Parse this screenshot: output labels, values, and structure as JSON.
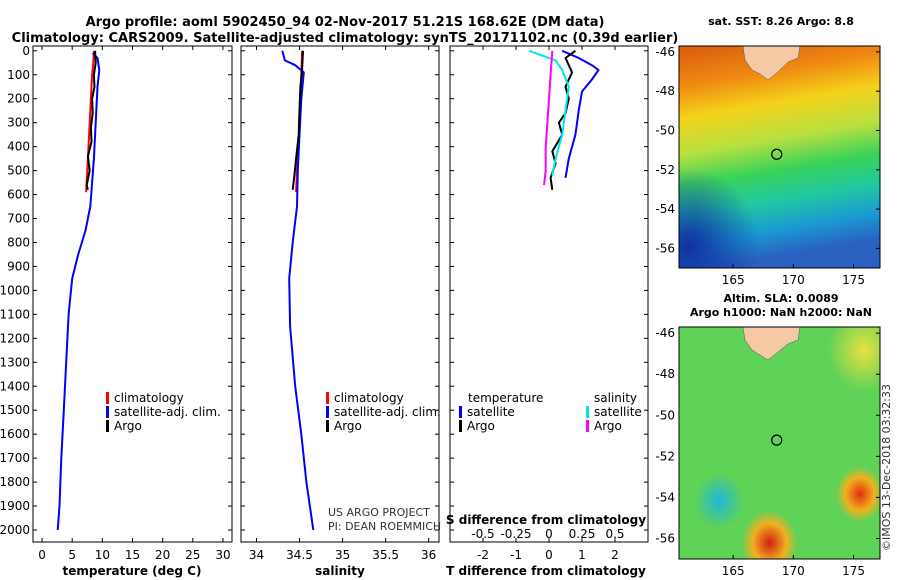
{
  "title": {
    "line1": "Argo profile: aoml 5902450_94 02-Nov-2017 51.21S 168.62E (DM data)",
    "line2": "Climatology: CARS2009. Satellite-adjusted climatology: synTS_20171102.nc (0.39d earlier)"
  },
  "depth_axis": {
    "ticks": [
      0,
      100,
      200,
      300,
      400,
      500,
      600,
      700,
      800,
      900,
      1000,
      1100,
      1200,
      1300,
      1400,
      1500,
      1600,
      1700,
      1800,
      1900,
      2000
    ],
    "ylim": [
      2050,
      -20
    ]
  },
  "colors": {
    "climatology": "#ff0000",
    "satellite": "#0000ff",
    "argo": "#000000",
    "cyan": "#00e5e5",
    "magenta": "#ff00ff"
  },
  "chart_data": [
    {
      "id": "temperature",
      "type": "line",
      "xlabel": "temperature (deg C)",
      "ylabel": "depth",
      "xlim": [
        -1.5,
        31.5
      ],
      "xticks": [
        0,
        5,
        10,
        15,
        20,
        25,
        30
      ],
      "series": [
        {
          "name": "climatology",
          "color": "#ff0000",
          "points": [
            [
              8.6,
              0
            ],
            [
              8.5,
              50
            ],
            [
              8.3,
              100
            ],
            [
              8.1,
              200
            ],
            [
              7.9,
              300
            ],
            [
              7.7,
              400
            ],
            [
              7.5,
              500
            ],
            [
              7.3,
              590
            ]
          ]
        },
        {
          "name": "satellite-adj. clim.",
          "color": "#0000ff",
          "points": [
            [
              8.4,
              10
            ],
            [
              9.2,
              30
            ],
            [
              9.5,
              80
            ],
            [
              9.2,
              150
            ],
            [
              9.0,
              250
            ],
            [
              8.8,
              350
            ],
            [
              8.6,
              450
            ],
            [
              8.3,
              550
            ],
            [
              8.0,
              650
            ],
            [
              7.2,
              750
            ],
            [
              6.0,
              850
            ],
            [
              5.0,
              950
            ],
            [
              4.4,
              1100
            ],
            [
              4.0,
              1300
            ],
            [
              3.6,
              1500
            ],
            [
              3.2,
              1700
            ],
            [
              2.9,
              1900
            ],
            [
              2.6,
              2000
            ]
          ]
        },
        {
          "name": "Argo",
          "color": "#000000",
          "points": [
            [
              8.8,
              0
            ],
            [
              8.9,
              50
            ],
            [
              8.6,
              100
            ],
            [
              8.7,
              150
            ],
            [
              8.3,
              200
            ],
            [
              8.4,
              260
            ],
            [
              8.1,
              320
            ],
            [
              8.2,
              380
            ],
            [
              7.6,
              440
            ],
            [
              7.9,
              500
            ],
            [
              7.4,
              560
            ],
            [
              7.6,
              580
            ]
          ]
        }
      ],
      "legend": [
        {
          "label": "climatology",
          "color": "#ff0000"
        },
        {
          "label": "satellite-adj. clim.",
          "color": "#0000ff"
        },
        {
          "label": "Argo",
          "color": "#000000"
        }
      ]
    },
    {
      "id": "salinity",
      "type": "line",
      "xlabel": "salinity",
      "ylabel": "depth",
      "xlim": [
        33.82,
        36.12
      ],
      "xticks": [
        34,
        34.5,
        35,
        35.5,
        36
      ],
      "tick_labels": [
        "34",
        "34.5",
        "35",
        "35.5",
        "36"
      ],
      "series": [
        {
          "name": "climatology",
          "color": "#ff0000",
          "points": [
            [
              34.53,
              0
            ],
            [
              34.52,
              100
            ],
            [
              34.5,
              250
            ],
            [
              34.49,
              400
            ],
            [
              34.47,
              500
            ],
            [
              34.46,
              590
            ]
          ]
        },
        {
          "name": "satellite-adj. clim.",
          "color": "#0000ff",
          "points": [
            [
              34.3,
              0
            ],
            [
              34.33,
              40
            ],
            [
              34.45,
              60
            ],
            [
              34.55,
              90
            ],
            [
              34.52,
              200
            ],
            [
              34.5,
              350
            ],
            [
              34.48,
              500
            ],
            [
              34.47,
              650
            ],
            [
              34.42,
              800
            ],
            [
              34.38,
              950
            ],
            [
              34.39,
              1150
            ],
            [
              34.45,
              1400
            ],
            [
              34.52,
              1600
            ],
            [
              34.58,
              1800
            ],
            [
              34.66,
              2000
            ]
          ]
        },
        {
          "name": "Argo",
          "color": "#000000",
          "points": [
            [
              34.54,
              0
            ],
            [
              34.53,
              80
            ],
            [
              34.51,
              150
            ],
            [
              34.5,
              250
            ],
            [
              34.49,
              350
            ],
            [
              34.46,
              450
            ],
            [
              34.44,
              520
            ],
            [
              34.42,
              580
            ]
          ]
        }
      ],
      "legend": [
        {
          "label": "climatology",
          "color": "#ff0000"
        },
        {
          "label": "satellite-adj. clim.",
          "color": "#0000ff"
        },
        {
          "label": "Argo",
          "color": "#000000"
        }
      ],
      "credit": [
        "US ARGO PROJECT",
        "PI: DEAN ROEMMICH"
      ]
    },
    {
      "id": "difference",
      "type": "line",
      "xlabel": "T difference from climatology",
      "xlabel_top": "S difference from climatology",
      "ylabel": "depth",
      "xlim": [
        -3,
        3
      ],
      "xticks": [
        -2,
        -1,
        0,
        1,
        2
      ],
      "top_ticks": [
        -0.5,
        -0.25,
        0,
        0.25,
        0.5
      ],
      "top_tick_labels": [
        "-0.5",
        "-0.25",
        "0",
        "0.25",
        "0.5"
      ],
      "series": [
        {
          "name": "temperature satellite",
          "color": "#0000ff",
          "points": [
            [
              0.4,
              0
            ],
            [
              0.9,
              30
            ],
            [
              1.3,
              60
            ],
            [
              1.5,
              80
            ],
            [
              1.3,
              120
            ],
            [
              1.0,
              170
            ],
            [
              0.9,
              250
            ],
            [
              0.8,
              350
            ],
            [
              0.6,
              450
            ],
            [
              0.5,
              530
            ]
          ]
        },
        {
          "name": "temperature Argo",
          "color": "#000000",
          "points": [
            [
              0.8,
              0
            ],
            [
              0.5,
              30
            ],
            [
              0.6,
              60
            ],
            [
              0.7,
              90
            ],
            [
              0.5,
              150
            ],
            [
              0.6,
              200
            ],
            [
              0.5,
              260
            ],
            [
              0.3,
              300
            ],
            [
              0.4,
              350
            ],
            [
              0.1,
              420
            ],
            [
              0.2,
              470
            ],
            [
              0.05,
              530
            ],
            [
              0.1,
              580
            ]
          ]
        },
        {
          "name": "salinity satellite",
          "color": "#00e5e5",
          "points": [
            [
              -0.6,
              0
            ],
            [
              0.2,
              40
            ],
            [
              0.4,
              80
            ],
            [
              0.6,
              150
            ],
            [
              0.5,
              250
            ],
            [
              0.4,
              350
            ],
            [
              0.2,
              450
            ],
            [
              0.1,
              520
            ]
          ]
        },
        {
          "name": "salinity Argo",
          "color": "#ff00ff",
          "points": [
            [
              0.1,
              0
            ],
            [
              0.05,
              100
            ],
            [
              0.0,
              200
            ],
            [
              -0.05,
              300
            ],
            [
              -0.1,
              400
            ],
            [
              -0.1,
              500
            ],
            [
              -0.15,
              560
            ]
          ]
        }
      ],
      "legend_temperature": {
        "heading": "temperature",
        "items": [
          {
            "label": "satellite",
            "color": "#0000ff"
          },
          {
            "label": "Argo",
            "color": "#000000"
          }
        ]
      },
      "legend_salinity": {
        "heading": "salinity",
        "items": [
          {
            "label": "satellite",
            "color": "#00e5e5"
          },
          {
            "label": "Argo",
            "color": "#ff00ff"
          }
        ]
      }
    }
  ],
  "maps": {
    "xticks": [
      165,
      170,
      175
    ],
    "yticks": [
      -46,
      -48,
      -50,
      -52,
      -54,
      -56
    ],
    "xlim": [
      160.5,
      177.2
    ],
    "ylim": [
      -45.7,
      -57.0
    ],
    "profile": {
      "lon": 168.62,
      "lat": -51.21
    },
    "sst": {
      "title": "sat. SST: 8.26 Argo: 8.8"
    },
    "sla": {
      "title_line1": "Altim. SLA: 0.0089",
      "title_line2": "Argo h1000: NaN h2000: NaN"
    }
  },
  "credit_vertical": "©IMOS 13-Dec-2018 03:32:33"
}
